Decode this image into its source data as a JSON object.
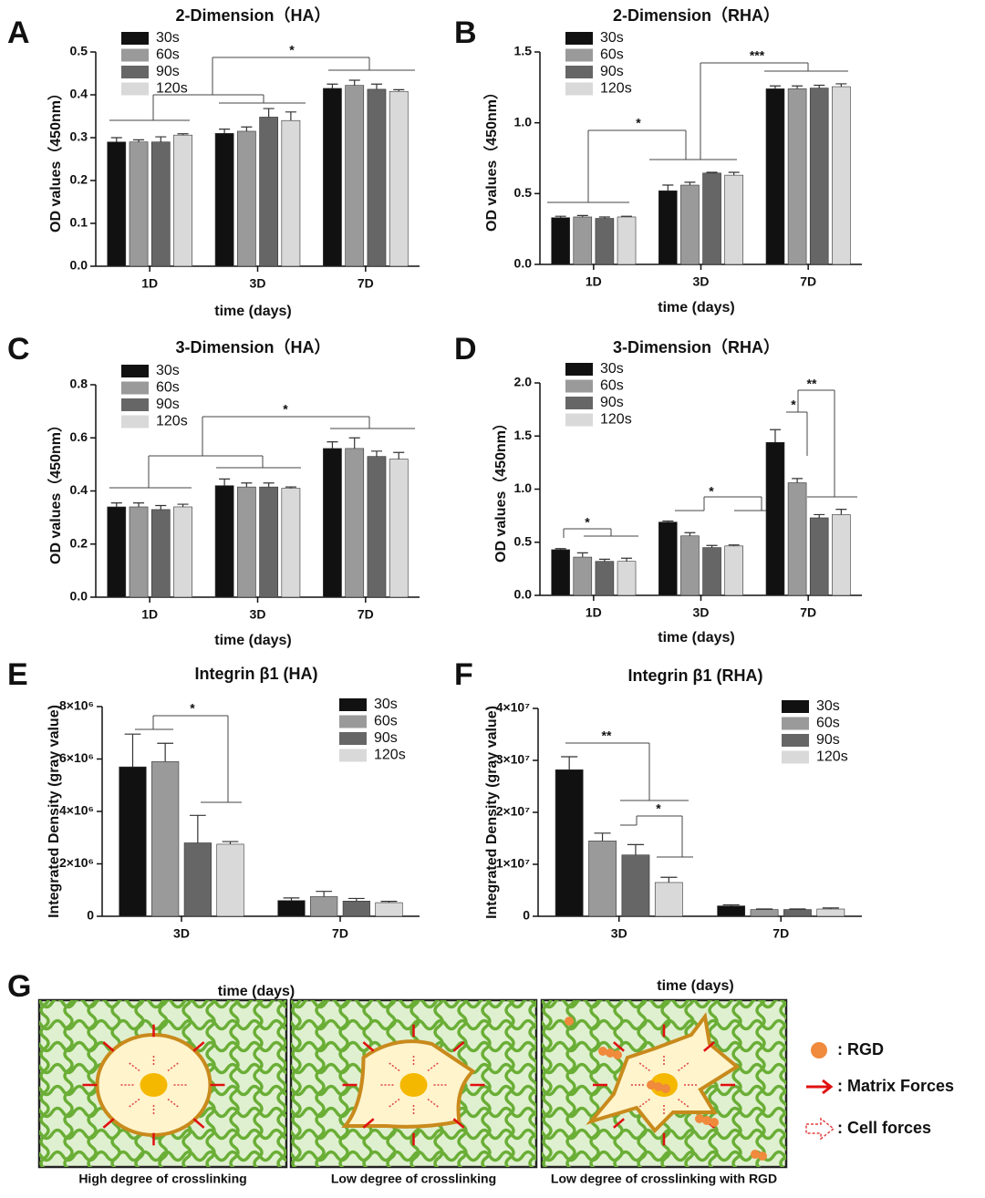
{
  "chart_data": [
    {
      "type": "bar",
      "label": "A",
      "title": "2-Dimension（HA）",
      "ylabel": "OD values（450nm）",
      "xlabel": "time (days)",
      "categories": [
        "1D",
        "3D",
        "7D"
      ],
      "ylim": [
        0,
        0.5
      ],
      "yticks": [
        {
          "value": 0,
          "label": "0.0"
        },
        0.1,
        0.2,
        0.3,
        0.4,
        0.5
      ],
      "legend": "upper left",
      "series": [
        {
          "name": "30s",
          "color": "#111111",
          "values": [
            0.29,
            0.31,
            0.415
          ],
          "errors": [
            0.01,
            0.01,
            0.01
          ]
        },
        {
          "name": "60s",
          "color": "#9a9a9a",
          "values": [
            0.29,
            0.315,
            0.422
          ],
          "errors": [
            0.005,
            0.01,
            0.012
          ]
        },
        {
          "name": "90s",
          "color": "#666666",
          "values": [
            0.29,
            0.348,
            0.413
          ],
          "errors": [
            0.012,
            0.02,
            0.012
          ]
        },
        {
          "name": "120s",
          "color": "#d9d9d9",
          "values": [
            0.306,
            0.34,
            0.408
          ],
          "errors": [
            0.003,
            0.02,
            0.004
          ]
        }
      ],
      "annotations": [
        "*"
      ]
    },
    {
      "type": "bar",
      "label": "B",
      "title": "2-Dimension（RHA）",
      "ylabel": "OD values（450nm）",
      "xlabel": "time (days)",
      "categories": [
        "1D",
        "3D",
        "7D"
      ],
      "ylim": [
        0,
        1.5
      ],
      "yticks": [
        {
          "value": 0,
          "label": "0.0"
        },
        0.5,
        {
          "value": 1,
          "label": "1.0"
        },
        1.5
      ],
      "legend": "upper left",
      "series": [
        {
          "name": "30s",
          "color": "#111111",
          "values": [
            0.33,
            0.52,
            1.24
          ],
          "errors": [
            0.01,
            0.04,
            0.02
          ]
        },
        {
          "name": "60s",
          "color": "#9a9a9a",
          "values": [
            0.335,
            0.56,
            1.24
          ],
          "errors": [
            0.01,
            0.02,
            0.02
          ]
        },
        {
          "name": "90s",
          "color": "#666666",
          "values": [
            0.325,
            0.645,
            1.245
          ],
          "errors": [
            0.01,
            0.005,
            0.02
          ]
        },
        {
          "name": "120s",
          "color": "#d9d9d9",
          "values": [
            0.335,
            0.63,
            1.255
          ],
          "errors": [
            0.005,
            0.02,
            0.02
          ]
        }
      ],
      "annotations": [
        "*",
        "***"
      ]
    },
    {
      "type": "bar",
      "label": "C",
      "title": "3-Dimension（HA）",
      "ylabel": "OD values（450nm）",
      "xlabel": "time (days)",
      "categories": [
        "1D",
        "3D",
        "7D"
      ],
      "ylim": [
        0,
        0.8
      ],
      "yticks": [
        {
          "value": 0,
          "label": "0.0"
        },
        0.2,
        0.4,
        0.6,
        0.8
      ],
      "legend": "upper left",
      "series": [
        {
          "name": "30s",
          "color": "#111111",
          "values": [
            0.34,
            0.42,
            0.56
          ],
          "errors": [
            0.015,
            0.025,
            0.025
          ]
        },
        {
          "name": "60s",
          "color": "#9a9a9a",
          "values": [
            0.34,
            0.415,
            0.56
          ],
          "errors": [
            0.015,
            0.015,
            0.04
          ]
        },
        {
          "name": "90s",
          "color": "#666666",
          "values": [
            0.33,
            0.415,
            0.53
          ],
          "errors": [
            0.015,
            0.015,
            0.02
          ]
        },
        {
          "name": "120s",
          "color": "#d9d9d9",
          "values": [
            0.34,
            0.41,
            0.52
          ],
          "errors": [
            0.01,
            0.005,
            0.025
          ]
        }
      ],
      "annotations": [
        "*"
      ]
    },
    {
      "type": "bar",
      "label": "D",
      "title": "3-Dimension（RHA）",
      "ylabel": "OD values（450nm）",
      "xlabel": "time (days)",
      "categories": [
        "1D",
        "3D",
        "7D"
      ],
      "ylim": [
        0,
        2
      ],
      "yticks": [
        {
          "value": 0,
          "label": "0.0"
        },
        0.5,
        {
          "value": 1,
          "label": "1.0"
        },
        1.5,
        {
          "value": 2,
          "label": "2.0"
        }
      ],
      "legend": "upper left",
      "series": [
        {
          "name": "30s",
          "color": "#111111",
          "values": [
            0.43,
            0.69,
            1.44
          ],
          "errors": [
            0.01,
            0.01,
            0.12
          ]
        },
        {
          "name": "60s",
          "color": "#9a9a9a",
          "values": [
            0.36,
            0.56,
            1.06
          ],
          "errors": [
            0.04,
            0.03,
            0.04
          ]
        },
        {
          "name": "90s",
          "color": "#666666",
          "values": [
            0.32,
            0.45,
            0.73
          ],
          "errors": [
            0.02,
            0.02,
            0.03
          ]
        },
        {
          "name": "120s",
          "color": "#d9d9d9",
          "values": [
            0.32,
            0.465,
            0.76
          ],
          "errors": [
            0.03,
            0.01,
            0.05
          ]
        }
      ],
      "annotations": [
        "*",
        "*",
        "*",
        "**"
      ]
    },
    {
      "type": "bar",
      "label": "E",
      "title": "Integrin β1 (HA)",
      "ylabel": "Integrated Density (gray value)",
      "xlabel": "time (days)",
      "categories": [
        "3D",
        "7D"
      ],
      "ylim": [
        0,
        8000000
      ],
      "yticks": [
        0,
        {
          "value": 2000000,
          "label": "2×10⁶"
        },
        {
          "value": 4000000,
          "label": "4×10⁶"
        },
        {
          "value": 6000000,
          "label": "6×10⁶"
        },
        {
          "value": 8000000,
          "label": "8×10⁶"
        }
      ],
      "legend": "upper right",
      "series": [
        {
          "name": "30s",
          "color": "#111111",
          "values": [
            5700000,
            600000
          ],
          "errors": [
            1250000,
            100000
          ]
        },
        {
          "name": "60s",
          "color": "#9a9a9a",
          "values": [
            5900000,
            750000
          ],
          "errors": [
            700000,
            200000
          ]
        },
        {
          "name": "90s",
          "color": "#666666",
          "values": [
            2800000,
            580000
          ],
          "errors": [
            1050000,
            100000
          ]
        },
        {
          "name": "120s",
          "color": "#d9d9d9",
          "values": [
            2750000,
            520000
          ],
          "errors": [
            100000,
            50000
          ]
        }
      ],
      "annotations": [
        "*"
      ]
    },
    {
      "type": "bar",
      "label": "F",
      "title": "Integrin β1 (RHA)",
      "ylabel": "Integrated Density (gray value)",
      "xlabel": "time (days)",
      "categories": [
        "3D",
        "7D"
      ],
      "ylim": [
        0,
        40000000
      ],
      "yticks": [
        0,
        {
          "value": 10000000,
          "label": "1×10⁷"
        },
        {
          "value": 20000000,
          "label": "2×10⁷"
        },
        {
          "value": 30000000,
          "label": "3×10⁷"
        },
        {
          "value": 40000000,
          "label": "4×10⁷"
        }
      ],
      "legend": "upper right",
      "series": [
        {
          "name": "30s",
          "color": "#111111",
          "values": [
            28200000,
            2000000
          ],
          "errors": [
            2500000,
            200000
          ]
        },
        {
          "name": "60s",
          "color": "#9a9a9a",
          "values": [
            14500000,
            1300000
          ],
          "errors": [
            1500000,
            100000
          ]
        },
        {
          "name": "90s",
          "color": "#666666",
          "values": [
            11800000,
            1300000
          ],
          "errors": [
            2000000,
            100000
          ]
        },
        {
          "name": "120s",
          "color": "#d9d9d9",
          "values": [
            6500000,
            1400000
          ],
          "errors": [
            1000000,
            200000
          ]
        }
      ],
      "annotations": [
        "**",
        "*"
      ]
    }
  ],
  "diagram": {
    "label": "G",
    "captions": [
      "High degree of crosslinking",
      "Low degree of crosslinking",
      "Low degree of crosslinking with RGD"
    ],
    "legend": [
      ": RGD",
      ": Matrix Forces",
      ": Cell forces"
    ]
  }
}
